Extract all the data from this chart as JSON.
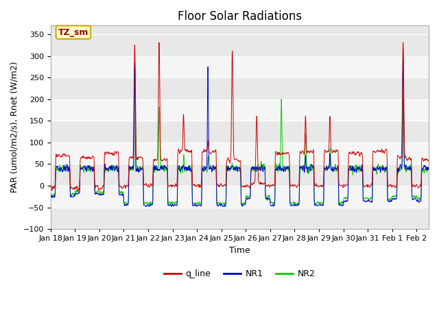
{
  "title": "Floor Solar Radiations",
  "xlabel": "Time",
  "ylabel": "PAR (umol/m2/s), Rnet (W/m2)",
  "ylim": [
    -100,
    370
  ],
  "yticks": [
    -100,
    -50,
    0,
    50,
    100,
    150,
    200,
    250,
    300,
    350
  ],
  "xlim_days": [
    0,
    15.5
  ],
  "xtick_labels": [
    "Jan 18",
    "Jan 19",
    "Jan 20",
    "Jan 21",
    "Jan 22",
    "Jan 23",
    "Jan 24",
    "Jan 25",
    "Jan 26",
    "Jan 27",
    "Jan 28",
    "Jan 29",
    "Jan 30",
    "Jan 31",
    "Feb 1",
    "Feb 2"
  ],
  "xtick_positions": [
    0,
    1,
    2,
    3,
    4,
    5,
    6,
    7,
    8,
    9,
    10,
    11,
    12,
    13,
    14,
    15
  ],
  "colors": {
    "q_line": "#cc0000",
    "NR1": "#0000cc",
    "NR2": "#00cc00"
  },
  "annotation_text": "TZ_sm",
  "annotation_box_color": "#ffffcc",
  "annotation_box_edge": "#ccaa00",
  "legend_labels": [
    "q_line",
    "NR1",
    "NR2"
  ],
  "background_color": "#ffffff",
  "plot_bg_color": "#e8e8e8",
  "band_light": "#f5f5f5",
  "title_fontsize": 12,
  "axis_fontsize": 9,
  "tick_fontsize": 8
}
